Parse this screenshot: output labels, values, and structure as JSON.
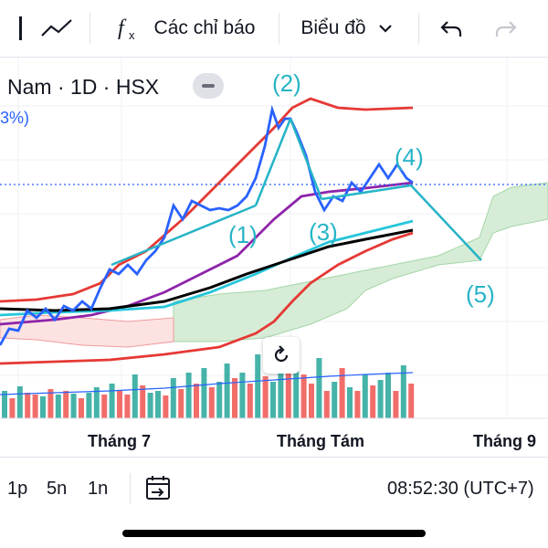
{
  "toolbar": {
    "indicators_label": "Các chỉ báo",
    "chart_type_label": "Biểu đồ"
  },
  "legend": {
    "symbol": "Nam · 1D · HSX",
    "percent": "3%)"
  },
  "chart": {
    "wave_labels": [
      "(1)",
      "(2)",
      "(3)",
      "(4)",
      "(5)"
    ],
    "x_labels": [
      "Tháng 7",
      "Tháng Tám",
      "Tháng 9"
    ],
    "colors": {
      "price": "#2962ff",
      "wave": "#26c6da",
      "band": "#e53935",
      "ma_purple": "#8e24aa",
      "ma_black": "#000000",
      "cloud_green": "#c8e6c9",
      "cloud_red": "#ffcdd2",
      "volume_up": "#26a69a",
      "volume_down": "#ef5350"
    }
  },
  "bottom": {
    "ranges": [
      "1p",
      "5n",
      "1n"
    ],
    "time": "08:52:30 (UTC+7)"
  }
}
